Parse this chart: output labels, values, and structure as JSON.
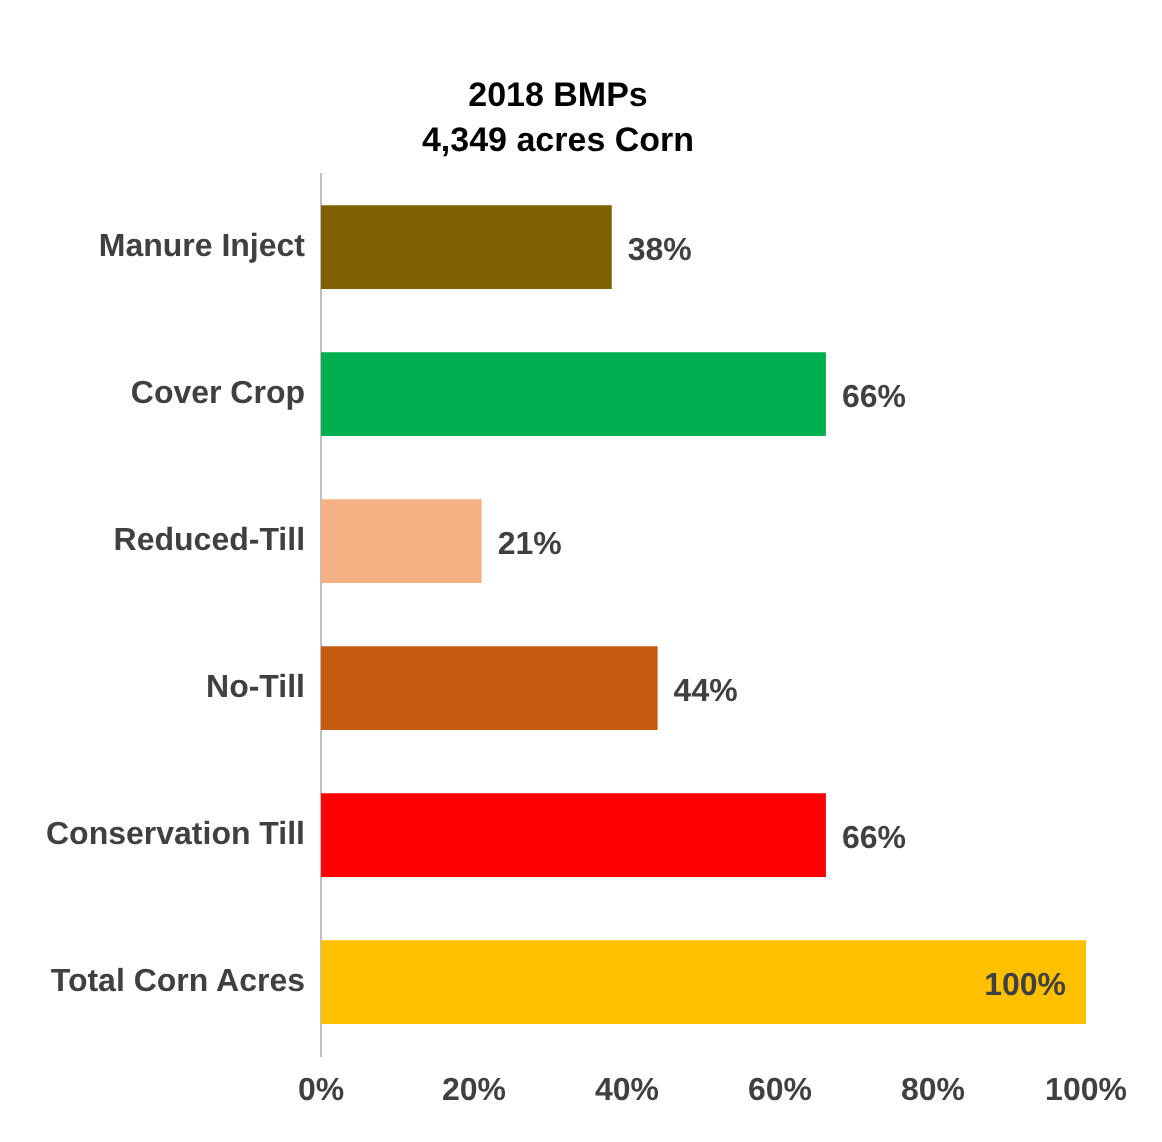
{
  "chart_data": {
    "type": "bar",
    "orientation": "horizontal",
    "title": "2018 BMPs",
    "subtitle": "4,349 acres Corn",
    "categories": [
      "Manure Inject",
      "Cover Crop",
      "Reduced-Till",
      "No-Till",
      "Conservation Till",
      "Total Corn Acres"
    ],
    "values": [
      38,
      66,
      21,
      44,
      66,
      100
    ],
    "colors": [
      "#7f6000",
      "#00b050",
      "#f4b183",
      "#c55a11",
      "#ff0000",
      "#ffc000"
    ],
    "value_labels": [
      "38%",
      "66%",
      "21%",
      "44%",
      "66%",
      "100%"
    ],
    "xlim": [
      0,
      100
    ],
    "xticks": [
      {
        "value": 0,
        "label": "0%"
      },
      {
        "value": 20,
        "label": "20%"
      },
      {
        "value": 40,
        "label": "40%"
      },
      {
        "value": 60,
        "label": "60%"
      },
      {
        "value": 80,
        "label": "80%"
      },
      {
        "value": 100,
        "label": "100%"
      }
    ],
    "grid": false,
    "legend": false
  }
}
